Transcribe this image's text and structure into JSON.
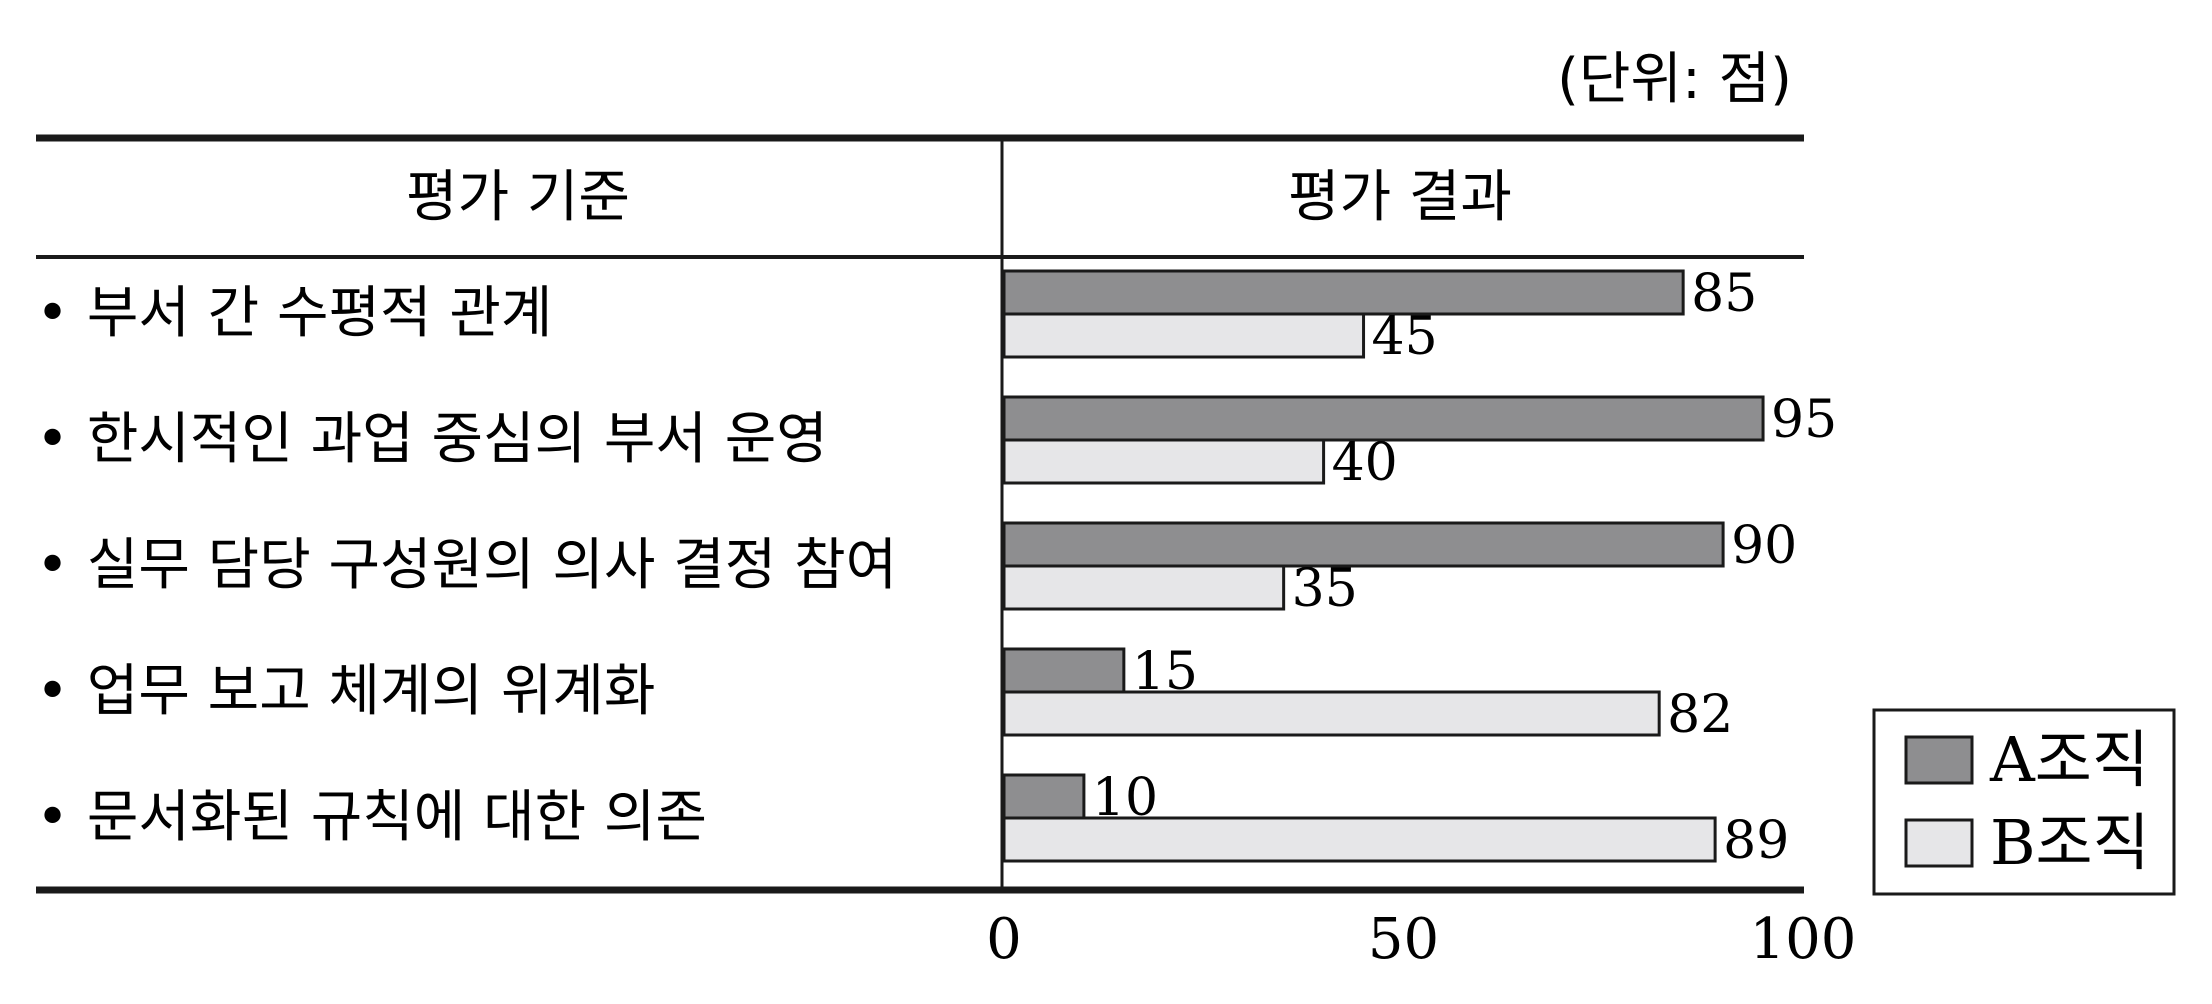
{
  "unit_label": "(단위: 점)",
  "columns": {
    "criteria_header": "평가 기준",
    "result_header": "평가 결과"
  },
  "legend": {
    "items": [
      {
        "label": "A조직",
        "color": "#8e8e90"
      },
      {
        "label": "B조직",
        "color": "#e6e6e8"
      }
    ]
  },
  "chart_data": {
    "type": "bar",
    "orientation": "horizontal",
    "categories": [
      "• 부서 간 수평적 관계",
      "• 한시적인 과업 중심의 부서 운영",
      "• 실무 담당 구성원의 의사 결정 참여",
      "• 업무 보고 체계의 위계화",
      "• 문서화된 규칙에 대한 의존"
    ],
    "series": [
      {
        "name": "A조직",
        "values": [
          85,
          95,
          90,
          15,
          10
        ],
        "color": "#8e8e90"
      },
      {
        "name": "B조직",
        "values": [
          45,
          40,
          35,
          82,
          89
        ],
        "color": "#e6e6e8"
      }
    ],
    "xlim": [
      0,
      100
    ],
    "xticks": [
      "0",
      "50",
      "100"
    ],
    "grid": false,
    "legend_position": "bottom-right",
    "data_labels": true
  }
}
